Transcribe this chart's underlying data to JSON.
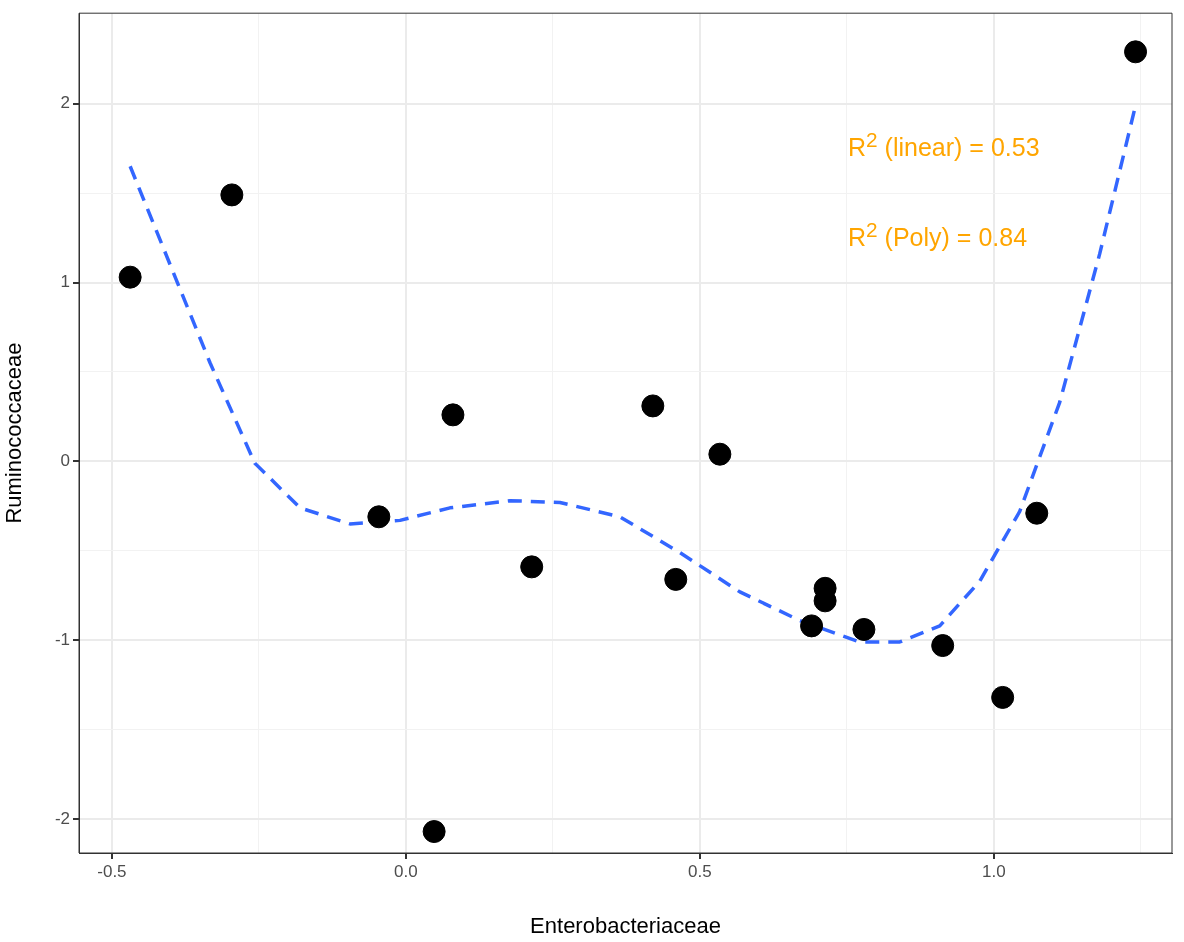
{
  "chart_data": {
    "type": "scatter",
    "xlabel": "Enterobacteriaceae",
    "ylabel": "Ruminococcaceae",
    "xlim": [
      -0.556,
      1.303
    ],
    "ylim": [
      -2.19,
      2.506
    ],
    "xticks": [
      {
        "value": -0.5,
        "label": "-0.5"
      },
      {
        "value": -0.25,
        "label": null
      },
      {
        "value": 0,
        "label": "0.0"
      },
      {
        "value": 0.25,
        "label": null
      },
      {
        "value": 0.5,
        "label": "0.5"
      },
      {
        "value": 0.75,
        "label": null
      },
      {
        "value": 1,
        "label": "1.0"
      },
      {
        "value": 1.25,
        "label": null
      }
    ],
    "yticks": [
      {
        "value": -2,
        "label": "-2"
      },
      {
        "value": -1.5,
        "label": null
      },
      {
        "value": -1,
        "label": "-1"
      },
      {
        "value": -0.5,
        "label": null
      },
      {
        "value": 0,
        "label": "0"
      },
      {
        "value": 0.5,
        "label": null
      },
      {
        "value": 1,
        "label": "1"
      },
      {
        "value": 1.5,
        "label": null
      },
      {
        "value": 2,
        "label": "2"
      }
    ],
    "grid": true,
    "legend": false,
    "annotations": [
      "R$^{2}$ (linear) = 0.53",
      "R$^{2}$ (Poly) = 0.84"
    ],
    "series": [
      {
        "type": "scatter",
        "color": "#000000",
        "marker": "circle",
        "x": [
          -0.469,
          -0.296,
          -0.046,
          0.08,
          0.048,
          0.214,
          0.42,
          0.459,
          0.534,
          0.69,
          0.713,
          0.713,
          0.779,
          0.913,
          1.015,
          1.073,
          1.241
        ],
        "values": [
          1.03,
          1.49,
          -0.31,
          0.26,
          -2.07,
          -0.59,
          0.31,
          -0.66,
          0.04,
          -0.92,
          -0.71,
          -0.78,
          -0.94,
          -1.03,
          -1.32,
          -0.29,
          2.29
        ]
      },
      {
        "type": "line",
        "color": "#3366ff",
        "marker": "none",
        "line_style": "dashed",
        "x": [
          -0.469,
          -0.401,
          -0.333,
          -0.257,
          -0.18,
          -0.095,
          -0.01,
          0.075,
          0.177,
          0.262,
          0.364,
          0.466,
          0.568,
          0.67,
          0.772,
          0.84,
          0.908,
          0.976,
          1.044,
          1.112,
          1.18,
          1.241
        ],
        "values": [
          1.65,
          1.1,
          0.55,
          -0.01,
          -0.26,
          -0.35,
          -0.33,
          -0.26,
          -0.22,
          -0.23,
          -0.31,
          -0.51,
          -0.73,
          -0.89,
          -1.01,
          -1.01,
          -0.92,
          -0.67,
          -0.28,
          0.33,
          1.16,
          1.99
        ]
      }
    ]
  }
}
